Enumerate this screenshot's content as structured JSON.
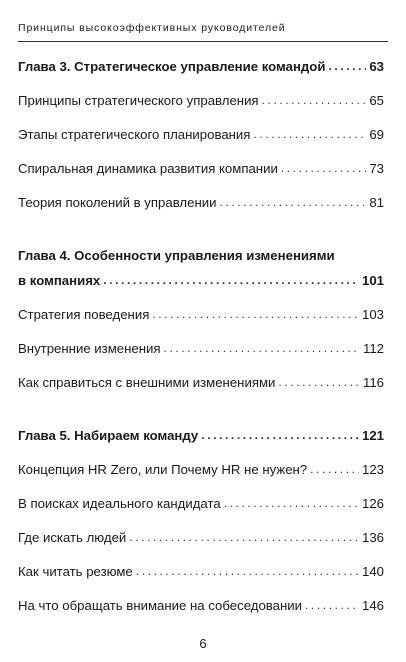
{
  "header": {
    "running_title": "Принципы высокоэффективных руководителей"
  },
  "chapter3": {
    "title": "Глава 3. Стратегическое управление командой",
    "page": "63",
    "sections": [
      {
        "title": "Принципы стратегического управления",
        "page": "65"
      },
      {
        "title": "Этапы стратегического планирования",
        "page": "69"
      },
      {
        "title": "Спиральная динамика развития компании",
        "page": "73"
      },
      {
        "title": "Теория поколений в управлении",
        "page": "81"
      }
    ]
  },
  "chapter4": {
    "title_line1": "Глава 4. Особенности управления изменениями",
    "title_line2": "в компаниях",
    "page": "101",
    "sections": [
      {
        "title": "Стратегия поведения",
        "page": "103"
      },
      {
        "title": "Внутренние изменения",
        "page": "112"
      },
      {
        "title": "Как справиться с внешними изменениями",
        "page": "116"
      }
    ]
  },
  "chapter5": {
    "title": "Глава 5. Набираем команду",
    "page": "121",
    "sections": [
      {
        "title": "Концепция HR Zero, или Почему HR не нужен?",
        "page": "123"
      },
      {
        "title": "В поисках идеального кандидата",
        "page": "126"
      },
      {
        "title": "Где искать людей",
        "page": "136"
      },
      {
        "title": "Как читать резюме",
        "page": "140"
      },
      {
        "title": "На что обращать внимание на собеседовании",
        "page": "146"
      }
    ]
  },
  "footer": {
    "page_number": "6"
  }
}
